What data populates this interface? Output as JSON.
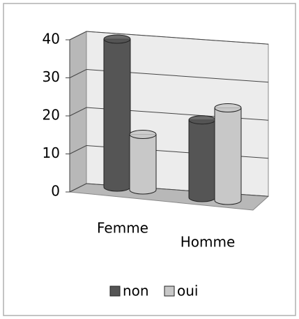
{
  "chart_data": {
    "type": "bar3d",
    "categories": [
      "Femme",
      "Homme"
    ],
    "series": [
      {
        "name": "non",
        "color": "#555555",
        "values": [
          40,
          21
        ]
      },
      {
        "name": "oui",
        "color": "#c8c8c8",
        "values": [
          15,
          25
        ]
      }
    ],
    "ylim": [
      0,
      40
    ],
    "yticks": [
      0,
      10,
      20,
      30,
      40
    ],
    "grid": true,
    "legend": "bottom"
  }
}
